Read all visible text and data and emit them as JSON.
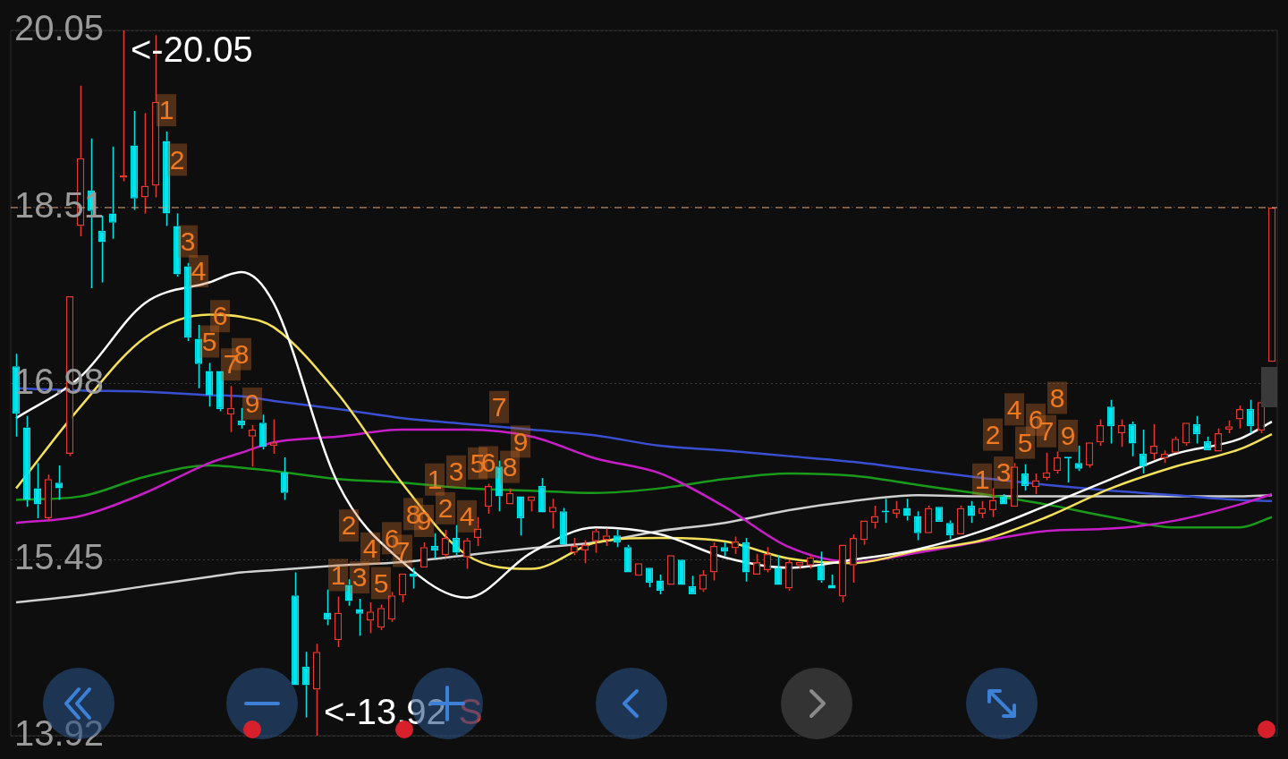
{
  "chart_data": {
    "type": "candlestick",
    "categories": [
      null,
      null,
      null,
      null,
      null,
      null,
      null,
      null,
      null,
      null,
      null,
      null,
      null,
      null,
      null,
      null,
      null,
      null,
      null,
      null,
      null,
      null,
      null,
      null,
      null,
      null,
      null,
      null,
      null,
      null,
      null,
      null,
      null,
      null,
      null,
      null,
      null,
      null,
      null,
      null,
      null,
      null,
      null,
      null,
      null,
      null,
      null,
      null,
      null,
      null,
      null,
      null,
      null,
      null,
      null,
      null,
      null,
      null,
      null,
      null,
      null,
      null,
      null,
      null,
      null,
      null,
      null,
      null,
      null,
      null,
      null,
      null,
      null,
      null,
      null,
      null,
      null,
      null,
      null,
      null,
      null,
      null,
      null,
      null,
      null,
      null,
      null,
      null,
      null,
      null,
      null,
      null,
      null,
      null,
      null,
      null,
      null,
      null,
      null,
      null,
      null,
      null,
      null,
      null,
      null,
      null,
      null,
      null,
      null,
      null,
      null,
      null,
      null,
      null,
      null,
      null,
      null,
      null
    ],
    "ohlc": [
      [
        17.13,
        17.24,
        16.52,
        16.72
      ],
      [
        16.6,
        16.7,
        15.91,
        15.97
      ],
      [
        16.07,
        16.29,
        15.81,
        15.93
      ],
      [
        15.81,
        16.19,
        15.79,
        16.15
      ],
      [
        16.12,
        16.27,
        15.97,
        16.07
      ],
      [
        16.37,
        17.75,
        16.35,
        17.74
      ],
      [
        18.35,
        19.57,
        18.26,
        18.94
      ],
      [
        18.66,
        19.11,
        17.81,
        18.48
      ],
      [
        18.31,
        18.44,
        17.86,
        18.21
      ],
      [
        18.46,
        19.04,
        18.24,
        18.38
      ],
      [
        18.77,
        20.05,
        18.74,
        18.79
      ],
      [
        19.05,
        19.35,
        18.49,
        18.59
      ],
      [
        18.6,
        19.33,
        18.46,
        18.7
      ],
      [
        18.7,
        20.01,
        18.6,
        19.43
      ],
      [
        19.09,
        19.17,
        18.35,
        18.46
      ],
      [
        18.35,
        18.46,
        17.91,
        17.93
      ],
      [
        18.0,
        18.03,
        17.35,
        17.38
      ],
      [
        17.37,
        17.49,
        16.94,
        17.15
      ],
      [
        17.09,
        17.16,
        16.78,
        16.88
      ],
      [
        17.09,
        17.1,
        16.74,
        16.76
      ],
      [
        16.71,
        16.96,
        16.56,
        16.77
      ],
      [
        16.66,
        16.77,
        16.59,
        16.62
      ],
      [
        16.52,
        16.62,
        16.26,
        16.58
      ],
      [
        16.64,
        16.71,
        16.41,
        16.43
      ],
      [
        16.44,
        16.67,
        16.37,
        16.47
      ],
      [
        16.21,
        16.34,
        15.97,
        16.03
      ],
      [
        15.14,
        15.34,
        14.36,
        14.36
      ],
      [
        14.52,
        14.65,
        14.08,
        14.36
      ],
      [
        14.32,
        14.72,
        13.92,
        14.65
      ],
      [
        14.99,
        15.19,
        14.88,
        14.93
      ],
      [
        14.75,
        15.13,
        14.69,
        14.99
      ],
      [
        15.23,
        15.28,
        15.05,
        15.09
      ],
      [
        15.02,
        15.11,
        14.79,
        14.98
      ],
      [
        14.92,
        15.08,
        14.81,
        15.0
      ],
      [
        14.86,
        15.06,
        14.84,
        15.03
      ],
      [
        14.93,
        15.17,
        14.91,
        15.14
      ],
      [
        15.14,
        15.34,
        15.08,
        15.33
      ],
      [
        15.33,
        15.38,
        15.2,
        15.3
      ],
      [
        15.38,
        15.6,
        15.37,
        15.56
      ],
      [
        15.57,
        15.68,
        15.46,
        15.53
      ],
      [
        15.49,
        15.71,
        15.47,
        15.64
      ],
      [
        15.64,
        15.75,
        15.49,
        15.51
      ],
      [
        15.47,
        15.64,
        15.37,
        15.62
      ],
      [
        15.64,
        15.82,
        15.57,
        15.72
      ],
      [
        15.91,
        16.11,
        15.85,
        16.09
      ],
      [
        16.26,
        16.31,
        15.87,
        16.0
      ],
      [
        15.93,
        16.07,
        15.92,
        16.03
      ],
      [
        16.0,
        16.01,
        15.66,
        15.81
      ],
      [
        15.96,
        16.01,
        15.87,
        16.0
      ],
      [
        16.09,
        16.16,
        15.85,
        15.86
      ],
      [
        15.86,
        15.98,
        15.72,
        15.91
      ],
      [
        15.87,
        15.9,
        15.57,
        15.58
      ],
      [
        15.51,
        15.64,
        15.49,
        15.57
      ],
      [
        15.53,
        15.62,
        15.42,
        15.58
      ],
      [
        15.61,
        15.72,
        15.51,
        15.7
      ],
      [
        15.62,
        15.72,
        15.57,
        15.66
      ],
      [
        15.66,
        15.71,
        15.56,
        15.6
      ],
      [
        15.56,
        15.58,
        15.33,
        15.34
      ],
      [
        15.31,
        15.43,
        15.3,
        15.42
      ],
      [
        15.38,
        15.39,
        15.21,
        15.25
      ],
      [
        15.27,
        15.32,
        15.15,
        15.18
      ],
      [
        15.23,
        15.5,
        15.22,
        15.49
      ],
      [
        15.45,
        15.46,
        15.22,
        15.23
      ],
      [
        15.22,
        15.31,
        15.15,
        15.15
      ],
      [
        15.19,
        15.36,
        15.17,
        15.32
      ],
      [
        15.34,
        15.6,
        15.27,
        15.57
      ],
      [
        15.56,
        15.6,
        15.48,
        15.52
      ],
      [
        15.55,
        15.65,
        15.5,
        15.61
      ],
      [
        15.6,
        15.64,
        15.26,
        15.34
      ],
      [
        15.32,
        15.5,
        15.31,
        15.43
      ],
      [
        15.36,
        15.56,
        15.34,
        15.5
      ],
      [
        15.38,
        15.49,
        15.22,
        15.23
      ],
      [
        15.2,
        15.45,
        15.18,
        15.43
      ],
      [
        15.4,
        15.44,
        15.37,
        15.43
      ],
      [
        15.4,
        15.49,
        15.37,
        15.47
      ],
      [
        15.4,
        15.52,
        15.25,
        15.27
      ],
      [
        15.23,
        15.32,
        15.19,
        15.2
      ],
      [
        15.13,
        15.59,
        15.08,
        15.58
      ],
      [
        15.4,
        15.67,
        15.25,
        15.64
      ],
      [
        15.62,
        15.8,
        15.58,
        15.79
      ],
      [
        15.77,
        15.92,
        15.72,
        15.83
      ],
      [
        15.87,
        15.98,
        15.77,
        15.86
      ],
      [
        15.85,
        15.96,
        15.81,
        15.89
      ],
      [
        15.9,
        15.98,
        15.79,
        15.83
      ],
      [
        15.83,
        15.87,
        15.62,
        15.68
      ],
      [
        15.68,
        15.92,
        15.67,
        15.9
      ],
      [
        15.91,
        15.92,
        15.77,
        15.78
      ],
      [
        15.77,
        15.79,
        15.63,
        15.66
      ],
      [
        15.67,
        15.92,
        15.66,
        15.9
      ],
      [
        15.92,
        15.96,
        15.77,
        15.83
      ],
      [
        15.85,
        15.96,
        15.81,
        15.9
      ],
      [
        15.88,
        16.07,
        15.82,
        15.97
      ],
      [
        16.0,
        16.02,
        15.92,
        15.93
      ],
      [
        15.91,
        16.29,
        15.9,
        16.26
      ],
      [
        16.2,
        16.28,
        16.05,
        16.09
      ],
      [
        16.08,
        16.2,
        16.02,
        16.14
      ],
      [
        16.16,
        16.38,
        16.14,
        16.21
      ],
      [
        16.22,
        16.39,
        16.2,
        16.34
      ],
      [
        16.34,
        16.34,
        16.12,
        16.33
      ],
      [
        16.29,
        16.44,
        16.22,
        16.24
      ],
      [
        16.27,
        16.48,
        16.25,
        16.47
      ],
      [
        16.47,
        16.67,
        16.44,
        16.62
      ],
      [
        16.78,
        16.84,
        16.46,
        16.61
      ],
      [
        16.55,
        16.67,
        16.43,
        16.62
      ],
      [
        16.63,
        16.65,
        16.35,
        16.46
      ],
      [
        16.37,
        16.58,
        16.2,
        16.26
      ],
      [
        16.37,
        16.63,
        16.32,
        16.44
      ],
      [
        16.33,
        16.4,
        16.29,
        16.37
      ],
      [
        16.38,
        16.52,
        16.37,
        16.5
      ],
      [
        16.46,
        16.65,
        16.44,
        16.64
      ],
      [
        16.63,
        16.7,
        16.46,
        16.54
      ],
      [
        16.48,
        16.52,
        16.39,
        16.4
      ],
      [
        16.39,
        16.59,
        16.38,
        16.55
      ],
      [
        16.58,
        16.66,
        16.55,
        16.61
      ],
      [
        16.67,
        16.79,
        16.59,
        16.76
      ],
      [
        16.76,
        16.84,
        16.55,
        16.61
      ],
      [
        16.57,
        16.84,
        16.55,
        16.82
      ],
      [
        17.17,
        18.51,
        17.17,
        18.51
      ]
    ],
    "colors": [
      "#00e4f0",
      "#00e4f0",
      "#00e4f0",
      "#e8392c",
      "#00e4f0",
      "#e8392c",
      "#e8392c",
      "#00e4f0",
      "#00e4f0",
      "#00e4f0",
      "#e8392c",
      "#00e4f0",
      "#e8392c",
      "#e8392c",
      "#00e4f0",
      "#00e4f0",
      "#00e4f0",
      "#00e4f0",
      "#00e4f0",
      "#00e4f0",
      "#e8392c",
      "#00e4f0",
      "#e8392c",
      "#00e4f0",
      "#e8392c",
      "#00e4f0",
      "#00e4f0",
      "#00e4f0",
      "#e8392c",
      "#00e4f0",
      "#e8392c",
      "#00e4f0",
      "#00e4f0",
      "#e8392c",
      "#e8392c",
      "#e8392c",
      "#e8392c",
      "#00e4f0",
      "#e8392c",
      "#00e4f0",
      "#e8392c",
      "#00e4f0",
      "#e8392c",
      "#e8392c",
      "#e8392c",
      "#00e4f0",
      "#e8392c",
      "#00e4f0",
      "#e8392c",
      "#00e4f0",
      "#e8392c",
      "#00e4f0",
      "#e8392c",
      "#e8392c",
      "#e8392c",
      "#e8392c",
      "#00e4f0",
      "#00e4f0",
      "#e8392c",
      "#00e4f0",
      "#00e4f0",
      "#e8392c",
      "#00e4f0",
      "#00e4f0",
      "#e8392c",
      "#e8392c",
      "#00e4f0",
      "#e8392c",
      "#00e4f0",
      "#e8392c",
      "#e8392c",
      "#00e4f0",
      "#e8392c",
      "#e8392c",
      "#e8392c",
      "#00e4f0",
      "#00e4f0",
      "#e8392c",
      "#e8392c",
      "#e8392c",
      "#e8392c",
      "#00e4f0",
      "#e8392c",
      "#00e4f0",
      "#00e4f0",
      "#e8392c",
      "#00e4f0",
      "#00e4f0",
      "#e8392c",
      "#00e4f0",
      "#e8392c",
      "#e8392c",
      "#00e4f0",
      "#e8392c",
      "#00e4f0",
      "#e8392c",
      "#e8392c",
      "#e8392c",
      "#00e4f0",
      "#00e4f0",
      "#e8392c",
      "#e8392c",
      "#00e4f0",
      "#e8392c",
      "#00e4f0",
      "#00e4f0",
      "#e8392c",
      "#e8392c",
      "#e8392c",
      "#e8392c",
      "#00e4f0",
      "#00e4f0",
      "#e8392c",
      "#e8392c",
      "#e8392c",
      "#00e4f0",
      "#e8392c",
      "#e8392c"
    ],
    "series": [
      {
        "type": "line",
        "color": "#ffffff",
        "values": [
          16.68,
          null,
          null,
          null,
          null,
          null,
          17.04,
          null,
          null,
          null,
          null,
          null,
          17.68,
          null,
          null,
          null,
          null,
          null,
          17.86,
          null,
          null,
          17.95,
          null,
          null,
          17.68,
          null,
          null,
          null,
          null,
          null,
          16.11,
          null,
          null,
          null,
          null,
          null,
          15.43,
          null,
          null,
          null,
          null,
          null,
          15.12,
          null,
          null,
          null,
          null,
          null,
          15.51,
          null,
          null,
          null,
          null,
          null,
          15.73,
          null,
          null,
          null,
          null,
          null,
          15.67,
          null,
          null,
          null,
          null,
          null,
          15.47,
          null,
          null,
          null,
          null,
          null,
          15.38,
          null,
          null,
          null,
          null,
          null,
          15.45,
          null,
          null,
          null,
          null,
          null,
          15.54,
          null,
          null,
          null,
          null,
          null,
          15.7,
          null,
          null,
          null,
          null,
          null,
          15.92,
          null,
          null,
          null,
          null,
          null,
          16.15,
          null,
          null,
          null,
          null,
          null,
          16.37,
          null,
          null,
          null,
          null,
          null,
          16.5,
          null,
          null,
          16.65
        ]
      },
      {
        "type": "line",
        "color": "#f5e05a",
        "values": [
          16.07,
          null,
          null,
          null,
          null,
          null,
          16.78,
          null,
          null,
          null,
          null,
          null,
          17.38,
          null,
          null,
          null,
          null,
          null,
          17.58,
          null,
          null,
          17.56,
          null,
          null,
          17.47,
          null,
          null,
          null,
          null,
          null,
          16.89,
          null,
          null,
          null,
          null,
          null,
          16.11,
          null,
          null,
          null,
          null,
          null,
          15.49,
          null,
          null,
          null,
          null,
          null,
          15.37,
          null,
          null,
          null,
          null,
          null,
          15.6,
          null,
          null,
          null,
          null,
          null,
          15.64,
          null,
          null,
          null,
          null,
          null,
          15.61,
          null,
          null,
          null,
          null,
          null,
          15.46,
          null,
          null,
          null,
          null,
          null,
          15.42,
          null,
          null,
          null,
          null,
          null,
          15.53,
          null,
          null,
          null,
          null,
          null,
          15.62,
          null,
          null,
          null,
          null,
          null,
          15.82,
          null,
          null,
          null,
          null,
          null,
          16.07,
          null,
          null,
          null,
          null,
          null,
          16.26,
          null,
          null,
          null,
          null,
          null,
          16.41,
          null,
          null,
          16.54
        ]
      },
      {
        "type": "line",
        "color": "#c81ec8",
        "values": [
          15.77,
          null,
          null,
          null,
          null,
          null,
          15.83,
          null,
          null,
          null,
          null,
          null,
          16.03,
          null,
          null,
          null,
          null,
          null,
          16.29,
          null,
          null,
          16.38,
          null,
          null,
          16.47,
          null,
          null,
          null,
          null,
          null,
          16.52,
          null,
          null,
          null,
          null,
          null,
          16.58,
          null,
          null,
          null,
          null,
          null,
          16.58,
          null,
          null,
          null,
          null,
          null,
          16.52,
          null,
          null,
          null,
          null,
          null,
          16.33,
          null,
          null,
          null,
          null,
          null,
          16.2,
          null,
          null,
          null,
          null,
          null,
          15.91,
          null,
          null,
          null,
          null,
          null,
          15.56,
          null,
          null,
          null,
          null,
          null,
          15.43,
          null,
          null,
          null,
          null,
          null,
          15.51,
          null,
          null,
          null,
          null,
          null,
          15.61,
          null,
          null,
          null,
          null,
          null,
          15.7,
          null,
          null,
          null,
          null,
          null,
          15.72,
          null,
          null,
          null,
          null,
          null,
          15.79,
          null,
          null,
          null,
          null,
          null,
          15.93,
          null,
          null,
          16.02
        ]
      },
      {
        "type": "line",
        "color": "#1a9a1a",
        "values": [
          15.97,
          null,
          null,
          null,
          null,
          null,
          16.0,
          null,
          null,
          null,
          null,
          null,
          16.17,
          null,
          null,
          null,
          null,
          null,
          16.27,
          null,
          null,
          16.25,
          null,
          null,
          16.22,
          null,
          null,
          null,
          null,
          null,
          16.15,
          null,
          null,
          null,
          null,
          null,
          16.12,
          null,
          null,
          null,
          null,
          null,
          16.07,
          null,
          null,
          null,
          null,
          null,
          16.05,
          null,
          null,
          null,
          null,
          null,
          16.03,
          null,
          null,
          null,
          null,
          null,
          16.07,
          null,
          null,
          null,
          null,
          null,
          16.15,
          null,
          null,
          null,
          null,
          null,
          16.2,
          null,
          null,
          null,
          null,
          null,
          16.18,
          null,
          null,
          null,
          null,
          null,
          16.1,
          null,
          null,
          null,
          null,
          null,
          16.02,
          null,
          null,
          null,
          null,
          null,
          15.93,
          null,
          null,
          null,
          null,
          null,
          15.82,
          null,
          null,
          null,
          null,
          null,
          15.73,
          null,
          null,
          null,
          null,
          null,
          15.73,
          null,
          null,
          15.82
        ]
      },
      {
        "type": "line",
        "color": "#3a4fd0",
        "values": [
          16.94,
          null,
          null,
          null,
          null,
          null,
          16.92,
          null,
          null,
          null,
          null,
          null,
          16.91,
          null,
          null,
          null,
          null,
          null,
          16.88,
          null,
          null,
          16.87,
          null,
          null,
          16.83,
          null,
          null,
          null,
          null,
          null,
          16.76,
          null,
          null,
          null,
          null,
          null,
          16.68,
          null,
          null,
          null,
          null,
          null,
          16.63,
          null,
          null,
          null,
          null,
          null,
          16.58,
          null,
          null,
          null,
          null,
          null,
          16.53,
          null,
          null,
          null,
          null,
          null,
          16.44,
          null,
          null,
          null,
          null,
          null,
          16.4,
          null,
          null,
          null,
          null,
          null,
          16.35,
          null,
          null,
          null,
          null,
          null,
          16.3,
          null,
          null,
          null,
          null,
          null,
          16.23,
          null,
          null,
          null,
          null,
          null,
          16.16,
          null,
          null,
          null,
          null,
          null,
          16.1,
          null,
          null,
          null,
          null,
          null,
          16.05,
          null,
          null,
          null,
          null,
          null,
          16.01,
          null,
          null,
          null,
          null,
          null,
          15.97,
          null,
          null,
          15.96
        ]
      },
      {
        "type": "line",
        "color": "#d0d0d0",
        "values": [
          15.08,
          null,
          null,
          null,
          null,
          null,
          15.14,
          null,
          null,
          null,
          null,
          null,
          15.22,
          null,
          null,
          null,
          null,
          null,
          15.3,
          null,
          null,
          15.34,
          null,
          null,
          15.36,
          null,
          null,
          null,
          null,
          null,
          15.4,
          null,
          null,
          null,
          null,
          null,
          15.43,
          null,
          null,
          null,
          null,
          null,
          15.49,
          null,
          null,
          null,
          null,
          null,
          15.55,
          null,
          null,
          null,
          null,
          null,
          15.6,
          null,
          null,
          null,
          null,
          null,
          15.7,
          null,
          null,
          null,
          null,
          null,
          15.77,
          null,
          null,
          null,
          null,
          null,
          15.88,
          null,
          null,
          null,
          null,
          null,
          15.96,
          null,
          null,
          null,
          null,
          null,
          16.01,
          null,
          null,
          null,
          null,
          null,
          16.0,
          null,
          null,
          null,
          null,
          null,
          16.0,
          null,
          null,
          null,
          null,
          null,
          16.0,
          null,
          null,
          null,
          null,
          null,
          16.0,
          null,
          null,
          null,
          null,
          null,
          16.0,
          null,
          null,
          16.01
        ]
      }
    ],
    "value_labels": [
      null,
      null,
      null,
      null,
      null,
      null,
      null,
      null,
      null,
      null,
      null,
      null,
      null,
      null,
      "1",
      "2",
      "3",
      "4",
      "5",
      "6",
      "7",
      "8",
      "9",
      null,
      null,
      null,
      null,
      null,
      null,
      null,
      "1",
      "2",
      "3",
      "4",
      "5",
      "6",
      "7",
      "8",
      "9",
      "1",
      "2",
      "3",
      "4",
      "5",
      "6",
      "7",
      "8",
      "9",
      null,
      null,
      null,
      null,
      null,
      null,
      null,
      null,
      null,
      null,
      null,
      null,
      null,
      null,
      null,
      null,
      null,
      null,
      null,
      null,
      null,
      null,
      null,
      null,
      null,
      null,
      null,
      null,
      null,
      null,
      null,
      null,
      null,
      null,
      null,
      null,
      null,
      null,
      null,
      null,
      null,
      null,
      "1",
      "2",
      "3",
      "4",
      "5",
      "6",
      "7",
      "8",
      "9",
      null,
      null,
      null,
      null,
      null,
      null,
      null,
      null,
      null,
      null,
      null,
      null,
      null,
      null,
      null,
      null,
      null,
      null,
      null
    ],
    "ylim": [
      13.92,
      20.05
    ],
    "yticks": [
      13.92,
      15.45,
      16.98,
      18.51,
      20.05
    ],
    "grid": "y",
    "ref_lines": [
      {
        "axis": "y",
        "value": 18.51,
        "color": "#d9a27a",
        "line_style": "dashed"
      }
    ],
    "annotations": [
      "<-20.05",
      "<-13.92",
      "S"
    ]
  }
}
